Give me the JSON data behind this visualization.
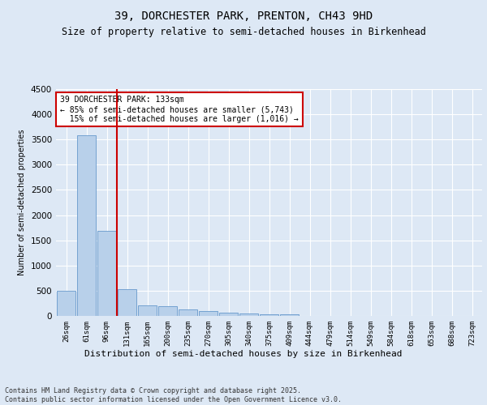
{
  "title1": "39, DORCHESTER PARK, PRENTON, CH43 9HD",
  "title2": "Size of property relative to semi-detached houses in Birkenhead",
  "xlabel": "Distribution of semi-detached houses by size in Birkenhead",
  "ylabel": "Number of semi-detached properties",
  "categories": [
    "26sqm",
    "61sqm",
    "96sqm",
    "131sqm",
    "165sqm",
    "200sqm",
    "235sqm",
    "270sqm",
    "305sqm",
    "340sqm",
    "375sqm",
    "409sqm",
    "444sqm",
    "479sqm",
    "514sqm",
    "549sqm",
    "584sqm",
    "618sqm",
    "653sqm",
    "688sqm",
    "723sqm"
  ],
  "values": [
    500,
    3580,
    1680,
    530,
    210,
    195,
    125,
    95,
    60,
    50,
    40,
    30,
    0,
    0,
    0,
    0,
    0,
    0,
    0,
    0,
    0
  ],
  "bar_color": "#b8d0ea",
  "bar_edge_color": "#6699cc",
  "vline_color": "#cc0000",
  "vline_pos": 2.5,
  "annotation_text": "39 DORCHESTER PARK: 133sqm\n← 85% of semi-detached houses are smaller (5,743)\n  15% of semi-detached houses are larger (1,016) →",
  "annotation_box_color": "#cc0000",
  "ylim": [
    0,
    4500
  ],
  "yticks": [
    0,
    500,
    1000,
    1500,
    2000,
    2500,
    3000,
    3500,
    4000,
    4500
  ],
  "footer_text": "Contains HM Land Registry data © Crown copyright and database right 2025.\nContains public sector information licensed under the Open Government Licence v3.0.",
  "bg_color": "#dde8f5",
  "plot_bg_color": "#dde8f5",
  "title_fontsize": 10,
  "subtitle_fontsize": 8.5
}
